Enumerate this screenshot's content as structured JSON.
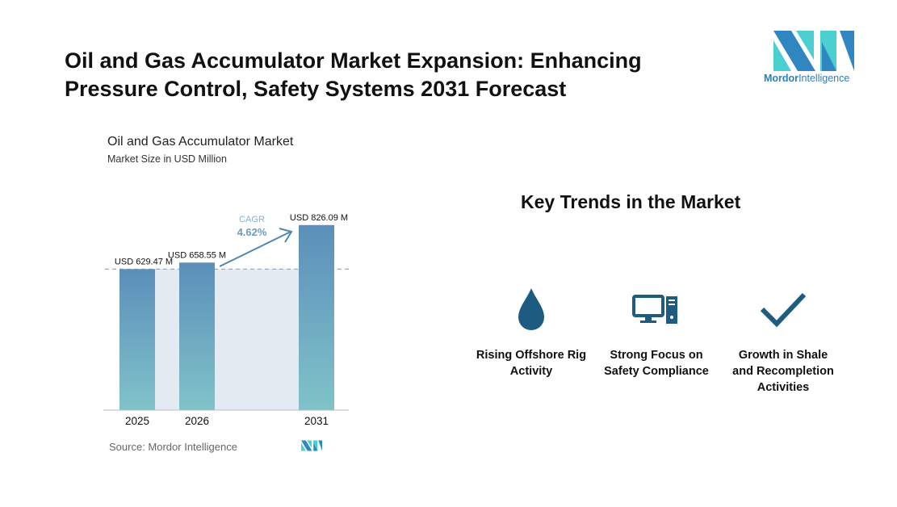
{
  "title": "Oil and Gas Accumulator Market Expansion: Enhancing Pressure Control, Safety Systems 2031 Forecast",
  "logo": {
    "text_bold": "Mordor",
    "text_rest": "Intelligence",
    "colors": [
      "#2f86c1",
      "#4ccfd0"
    ]
  },
  "chart_data": {
    "type": "bar",
    "title": "Oil and Gas Accumulator Market",
    "subtitle": "Market Size in USD Million",
    "categories": [
      "2025",
      "2026",
      "2031"
    ],
    "values": [
      629.47,
      658.55,
      826.09
    ],
    "data_labels": [
      "USD 629.47 M",
      "USD 658.55 M",
      "USD 826.09 M"
    ],
    "annotation": {
      "label": "CAGR",
      "value": "4.62%"
    },
    "ylim": [
      0,
      900
    ],
    "grid": false,
    "bar_gradient": [
      "#5b8fba",
      "#80c3c9"
    ],
    "source": "Source:  Mordor Intelligence"
  },
  "trends": {
    "heading": "Key Trends in the Market",
    "items": [
      {
        "icon": "droplet-icon",
        "label": "Rising Offshore Rig Activity"
      },
      {
        "icon": "computer-icon",
        "label": "Strong Focus on Safety Compliance"
      },
      {
        "icon": "checkmark-icon",
        "label": "Growth in Shale and Recompletion Activities"
      }
    ],
    "icon_color": "#1d5c80"
  }
}
